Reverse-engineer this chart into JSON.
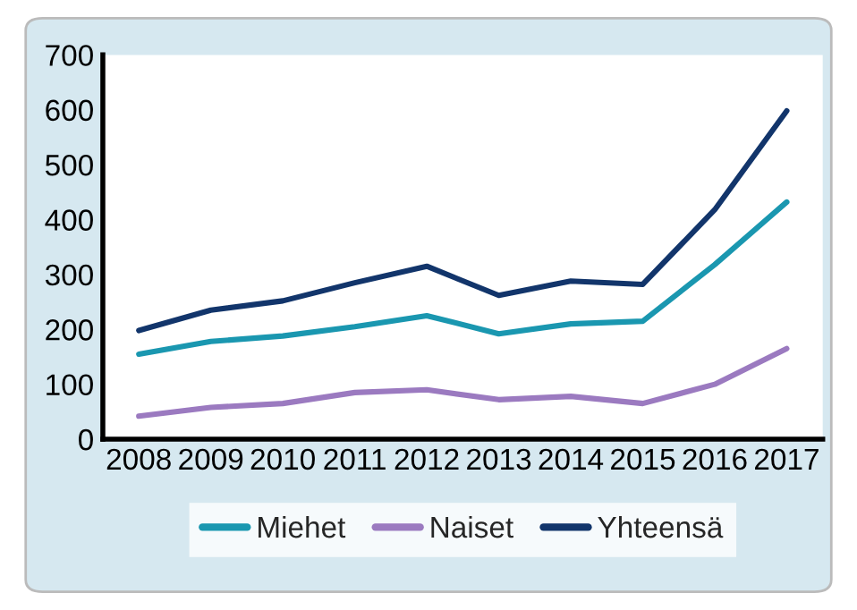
{
  "chart_data": {
    "type": "line",
    "categories": [
      "2008",
      "2009",
      "2010",
      "2011",
      "2012",
      "2013",
      "2014",
      "2015",
      "2016",
      "2017"
    ],
    "series": [
      {
        "name": "Miehet",
        "color": "#1a97b0",
        "values": [
          155,
          178,
          188,
          205,
          225,
          192,
          210,
          215,
          318,
          432
        ]
      },
      {
        "name": "Naiset",
        "color": "#9b7ac0",
        "values": [
          42,
          58,
          65,
          85,
          90,
          72,
          78,
          65,
          100,
          165
        ]
      },
      {
        "name": "Yhteensä",
        "color": "#12356b",
        "values": [
          198,
          235,
          252,
          285,
          315,
          262,
          288,
          282,
          418,
          598
        ]
      }
    ],
    "ylim": [
      0,
      700
    ],
    "yticks": [
      0,
      100,
      200,
      300,
      400,
      500,
      600,
      700
    ],
    "grid": false,
    "legend": "bottom",
    "marker": "none",
    "line_style": "solid"
  }
}
